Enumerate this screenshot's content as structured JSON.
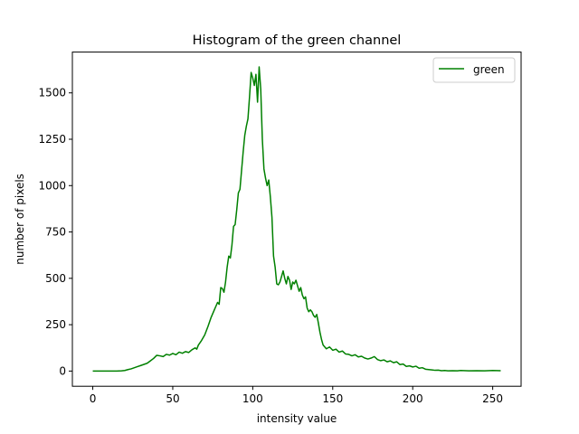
{
  "chart_data": {
    "type": "line",
    "title": "Histogram of the green channel",
    "xlabel": "intensity value",
    "ylabel": "number of pixels",
    "xlim": [
      -12.75,
      267.75
    ],
    "ylim": [
      -82,
      1720
    ],
    "xticks": [
      0,
      50,
      100,
      150,
      200,
      250
    ],
    "yticks": [
      0,
      250,
      500,
      750,
      1000,
      1250,
      1500
    ],
    "grid": false,
    "legend_position": "top-right",
    "series": [
      {
        "name": "green",
        "color": "#008000",
        "points": [
          [
            0,
            0
          ],
          [
            5,
            0
          ],
          [
            10,
            0
          ],
          [
            15,
            0
          ],
          [
            18,
            1
          ],
          [
            20,
            3
          ],
          [
            22,
            8
          ],
          [
            24,
            12
          ],
          [
            26,
            18
          ],
          [
            28,
            24
          ],
          [
            30,
            30
          ],
          [
            32,
            36
          ],
          [
            34,
            42
          ],
          [
            36,
            55
          ],
          [
            38,
            68
          ],
          [
            40,
            85
          ],
          [
            42,
            82
          ],
          [
            44,
            78
          ],
          [
            46,
            90
          ],
          [
            48,
            86
          ],
          [
            50,
            95
          ],
          [
            52,
            88
          ],
          [
            54,
            102
          ],
          [
            56,
            96
          ],
          [
            58,
            105
          ],
          [
            60,
            100
          ],
          [
            62,
            115
          ],
          [
            64,
            125
          ],
          [
            65,
            118
          ],
          [
            66,
            140
          ],
          [
            68,
            165
          ],
          [
            70,
            195
          ],
          [
            72,
            240
          ],
          [
            74,
            290
          ],
          [
            76,
            330
          ],
          [
            78,
            370
          ],
          [
            79,
            360
          ],
          [
            80,
            450
          ],
          [
            81,
            445
          ],
          [
            82,
            425
          ],
          [
            83,
            480
          ],
          [
            84,
            560
          ],
          [
            85,
            620
          ],
          [
            86,
            610
          ],
          [
            87,
            680
          ],
          [
            88,
            780
          ],
          [
            89,
            790
          ],
          [
            90,
            870
          ],
          [
            91,
            960
          ],
          [
            92,
            980
          ],
          [
            93,
            1080
          ],
          [
            94,
            1180
          ],
          [
            95,
            1270
          ],
          [
            96,
            1320
          ],
          [
            97,
            1360
          ],
          [
            98,
            1480
          ],
          [
            99,
            1610
          ],
          [
            100,
            1580
          ],
          [
            101,
            1540
          ],
          [
            102,
            1600
          ],
          [
            103,
            1450
          ],
          [
            104,
            1640
          ],
          [
            105,
            1520
          ],
          [
            106,
            1250
          ],
          [
            107,
            1090
          ],
          [
            108,
            1040
          ],
          [
            109,
            1000
          ],
          [
            110,
            1030
          ],
          [
            111,
            940
          ],
          [
            112,
            830
          ],
          [
            113,
            620
          ],
          [
            114,
            560
          ],
          [
            115,
            470
          ],
          [
            116,
            465
          ],
          [
            117,
            480
          ],
          [
            118,
            510
          ],
          [
            119,
            540
          ],
          [
            120,
            500
          ],
          [
            121,
            470
          ],
          [
            122,
            510
          ],
          [
            123,
            490
          ],
          [
            124,
            440
          ],
          [
            125,
            480
          ],
          [
            126,
            470
          ],
          [
            127,
            490
          ],
          [
            128,
            460
          ],
          [
            129,
            430
          ],
          [
            130,
            450
          ],
          [
            131,
            410
          ],
          [
            132,
            390
          ],
          [
            133,
            400
          ],
          [
            134,
            340
          ],
          [
            135,
            320
          ],
          [
            136,
            330
          ],
          [
            137,
            320
          ],
          [
            138,
            300
          ],
          [
            139,
            290
          ],
          [
            140,
            305
          ],
          [
            141,
            260
          ],
          [
            142,
            210
          ],
          [
            143,
            170
          ],
          [
            144,
            140
          ],
          [
            146,
            120
          ],
          [
            148,
            130
          ],
          [
            150,
            112
          ],
          [
            152,
            118
          ],
          [
            154,
            102
          ],
          [
            156,
            108
          ],
          [
            158,
            92
          ],
          [
            160,
            90
          ],
          [
            162,
            82
          ],
          [
            164,
            88
          ],
          [
            166,
            76
          ],
          [
            168,
            80
          ],
          [
            170,
            70
          ],
          [
            172,
            65
          ],
          [
            174,
            70
          ],
          [
            176,
            78
          ],
          [
            178,
            62
          ],
          [
            180,
            56
          ],
          [
            182,
            60
          ],
          [
            184,
            50
          ],
          [
            186,
            55
          ],
          [
            188,
            45
          ],
          [
            190,
            50
          ],
          [
            192,
            35
          ],
          [
            194,
            38
          ],
          [
            196,
            25
          ],
          [
            198,
            28
          ],
          [
            200,
            22
          ],
          [
            202,
            26
          ],
          [
            204,
            15
          ],
          [
            206,
            18
          ],
          [
            208,
            10
          ],
          [
            210,
            8
          ],
          [
            212,
            6
          ],
          [
            214,
            4
          ],
          [
            216,
            5
          ],
          [
            218,
            2
          ],
          [
            220,
            3
          ],
          [
            222,
            1
          ],
          [
            225,
            2
          ],
          [
            228,
            1
          ],
          [
            230,
            3
          ],
          [
            235,
            1
          ],
          [
            240,
            2
          ],
          [
            245,
            1
          ],
          [
            250,
            3
          ],
          [
            255,
            2
          ]
        ]
      }
    ]
  }
}
